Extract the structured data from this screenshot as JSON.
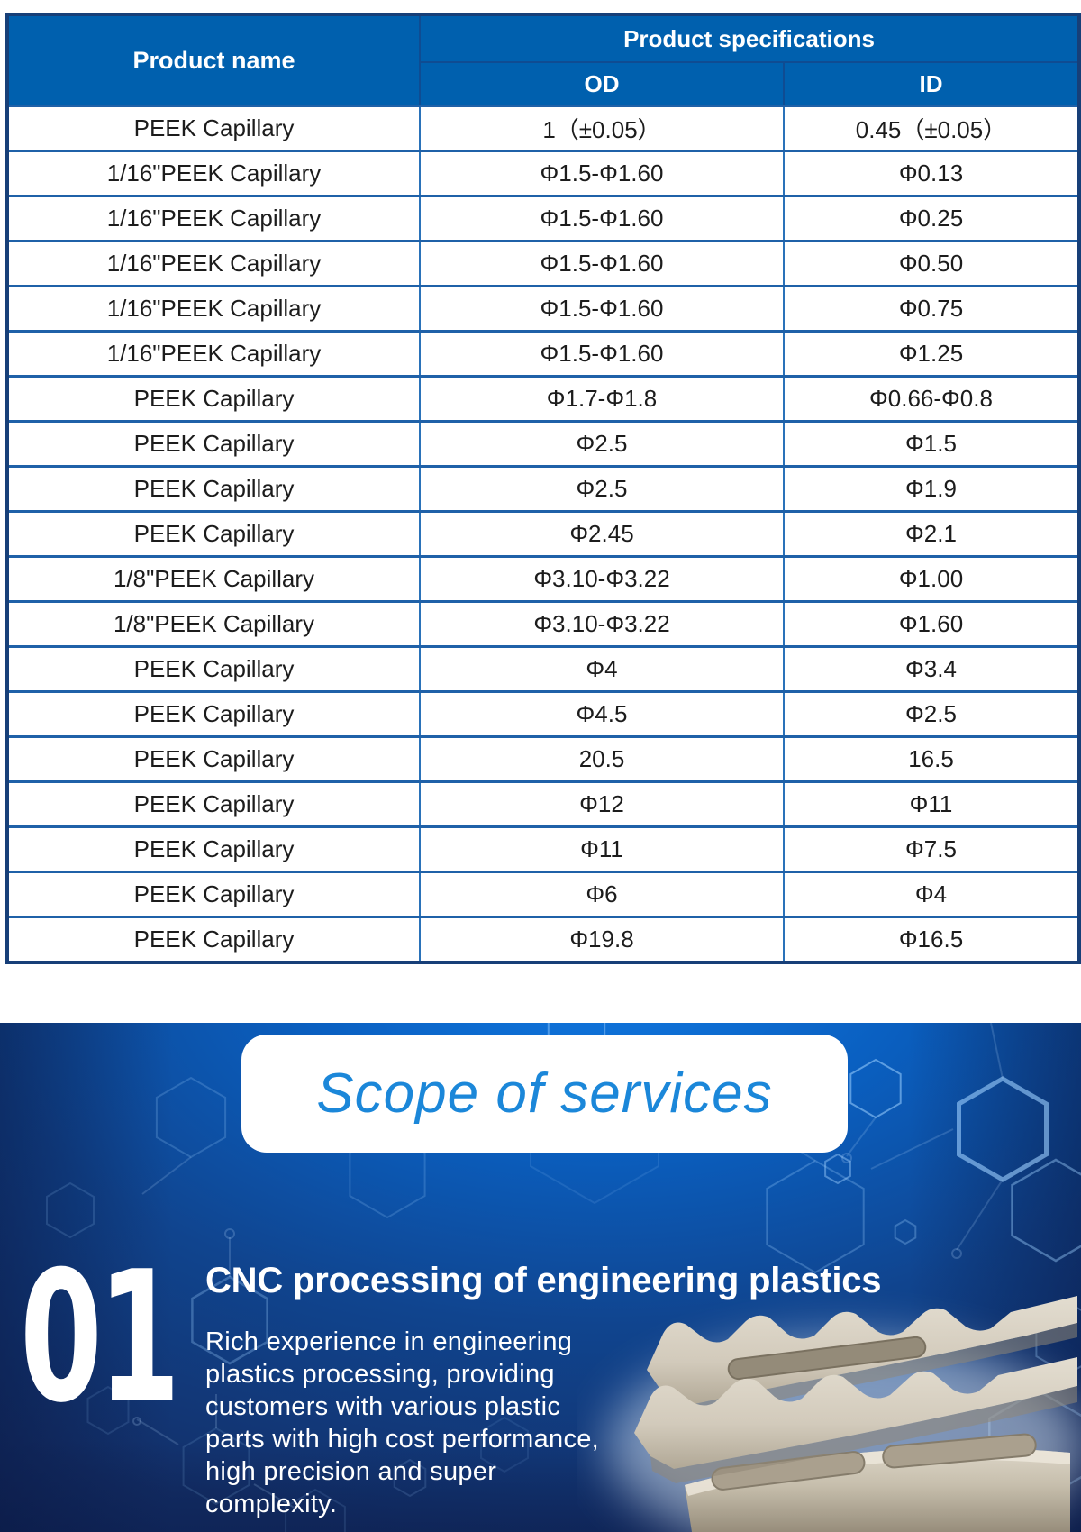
{
  "table": {
    "col1_header": "Product name",
    "specs_header": "Product specifications",
    "od_header": "OD",
    "id_header": "ID",
    "rows": [
      {
        "name": "PEEK Capillary",
        "od": "1（±0.05）",
        "id": "0.45（±0.05）"
      },
      {
        "name": "1/16\"PEEK Capillary",
        "od": "Φ1.5-Φ1.60",
        "id": "Φ0.13"
      },
      {
        "name": "1/16\"PEEK Capillary",
        "od": "Φ1.5-Φ1.60",
        "id": "Φ0.25"
      },
      {
        "name": "1/16\"PEEK Capillary",
        "od": "Φ1.5-Φ1.60",
        "id": "Φ0.50"
      },
      {
        "name": "1/16\"PEEK Capillary",
        "od": "Φ1.5-Φ1.60",
        "id": "Φ0.75"
      },
      {
        "name": "1/16\"PEEK Capillary",
        "od": "Φ1.5-Φ1.60",
        "id": "Φ1.25"
      },
      {
        "name": "PEEK Capillary",
        "od": "Φ1.7-Φ1.8",
        "id": "Φ0.66-Φ0.8"
      },
      {
        "name": "PEEK Capillary",
        "od": "Φ2.5",
        "id": "Φ1.5"
      },
      {
        "name": "PEEK Capillary",
        "od": "Φ2.5",
        "id": "Φ1.9"
      },
      {
        "name": "PEEK Capillary",
        "od": "Φ2.45",
        "id": "Φ2.1"
      },
      {
        "name": "1/8\"PEEK Capillary",
        "od": "Φ3.10-Φ3.22",
        "id": "Φ1.00"
      },
      {
        "name": "1/8\"PEEK Capillary",
        "od": "Φ3.10-Φ3.22",
        "id": "Φ1.60"
      },
      {
        "name": "PEEK Capillary",
        "od": "Φ4",
        "id": "Φ3.4"
      },
      {
        "name": "PEEK Capillary",
        "od": "Φ4.5",
        "id": "Φ2.5"
      },
      {
        "name": "PEEK Capillary",
        "od": "20.5",
        "id": "16.5"
      },
      {
        "name": "PEEK Capillary",
        "od": "Φ12",
        "id": "Φ11"
      },
      {
        "name": "PEEK Capillary",
        "od": "Φ11",
        "id": "Φ7.5"
      },
      {
        "name": "PEEK Capillary",
        "od": "Φ6",
        "id": "Φ4"
      },
      {
        "name": "PEEK Capillary",
        "od": "Φ19.8",
        "id": "Φ16.5"
      }
    ]
  },
  "services": {
    "title": "Scope of services",
    "item_number": "01",
    "item_title": "CNC processing of engineering plastics",
    "item_lines": [
      "Rich experience in engineering",
      "plastics processing, providing",
      "customers with various plastic",
      "parts with high cost performance,",
      "high precision and super",
      "complexity."
    ],
    "image_alt": "beige CNC machined curved comb-shaped plastic part"
  },
  "colors": {
    "table_header_blue": "#0060ae",
    "table_header_divider": "#0f4c92",
    "table_grid_horizontal": "#1f61a8",
    "table_grid_vertical": "#2a72b9",
    "table_outer_border": "#173f78",
    "section_bright_blue": "#1079e2",
    "section_dark_navy": "#132f68",
    "services_title_blue": "#1b87d9",
    "text_white": "#ffffff",
    "part_beige": "#d6cfc0"
  }
}
